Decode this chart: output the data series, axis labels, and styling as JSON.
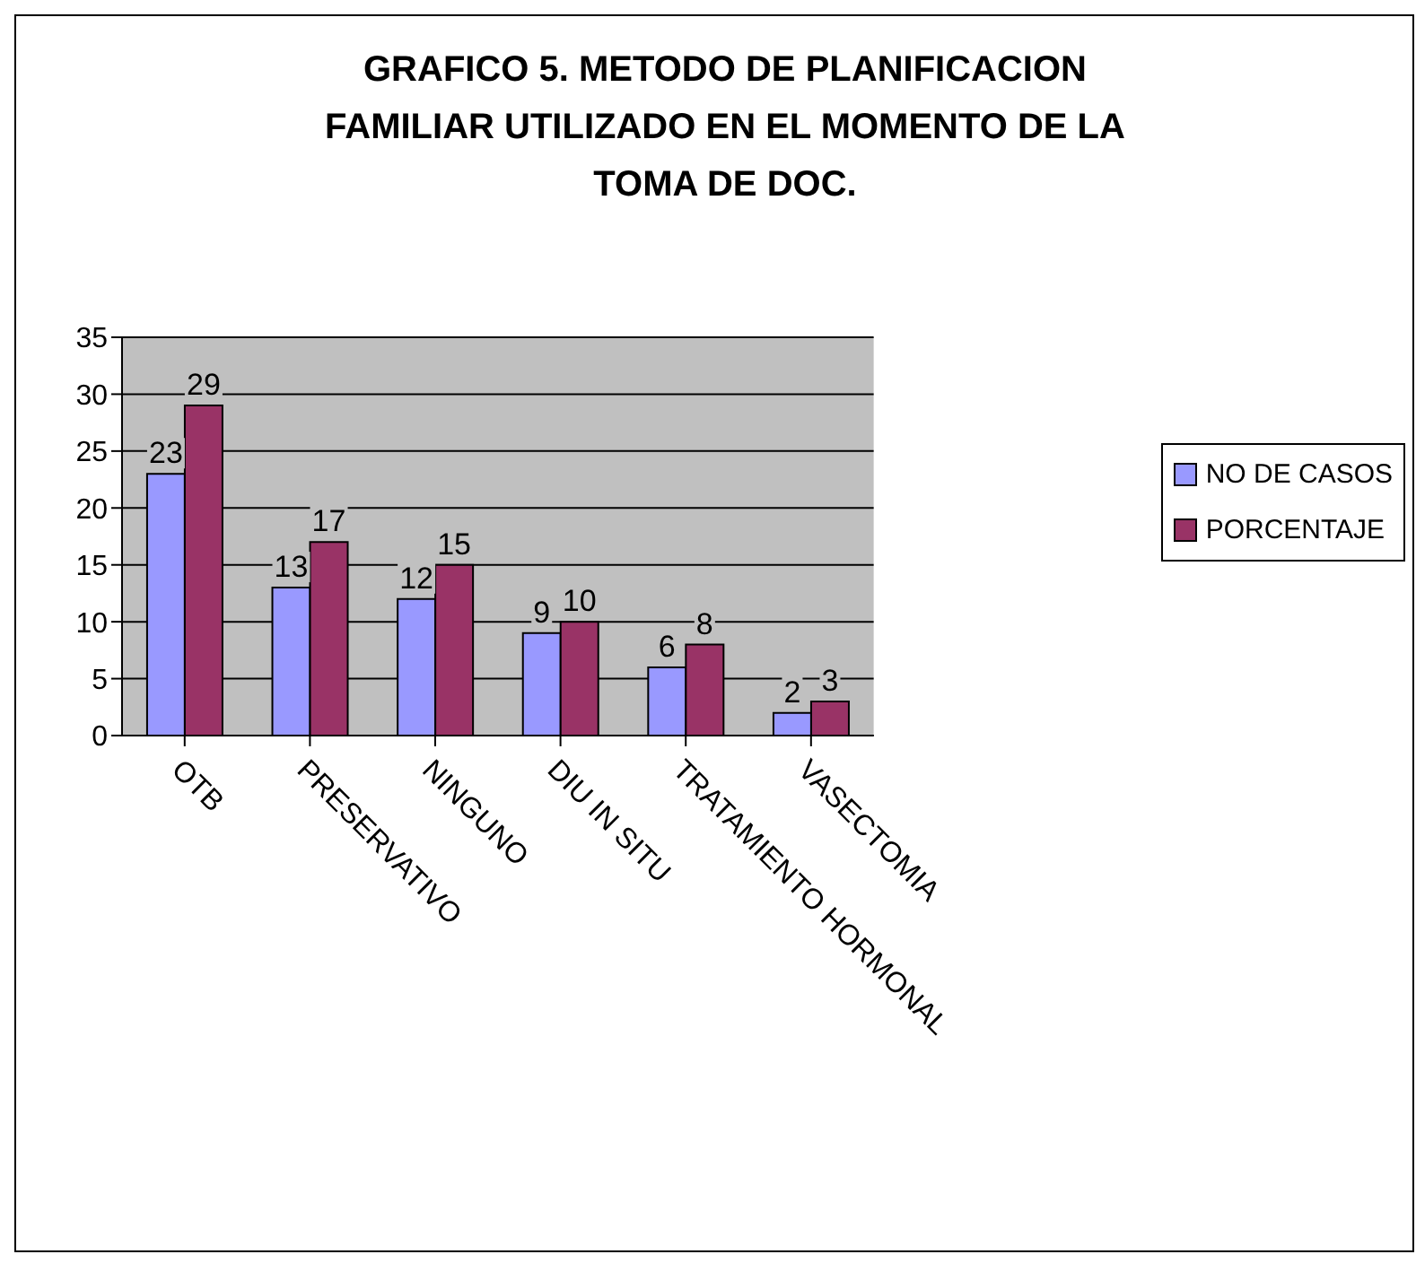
{
  "chart_data": {
    "type": "bar",
    "title": "GRAFICO 5. METODO DE PLANIFICACION FAMILIAR UTILIZADO EN EL MOMENTO DE LA TOMA DE DOC.",
    "categories": [
      "OTB",
      "PRESERVATIVO",
      "NINGUNO",
      "DIU IN SITU",
      "TRATAMIENTO HORMONAL",
      "VASECTOMIA"
    ],
    "series": [
      {
        "name": "NO DE CASOS",
        "color": "#9999ff",
        "values": [
          23,
          13,
          12,
          9,
          6,
          2
        ]
      },
      {
        "name": "PORCENTAJE",
        "color": "#993366",
        "values": [
          29,
          17,
          15,
          10,
          8,
          3
        ]
      }
    ],
    "ylim": [
      0,
      35
    ],
    "yticks": [
      0,
      5,
      10,
      15,
      20,
      25,
      30,
      35
    ],
    "grid": "y",
    "legend": "right",
    "data_labels": true
  }
}
